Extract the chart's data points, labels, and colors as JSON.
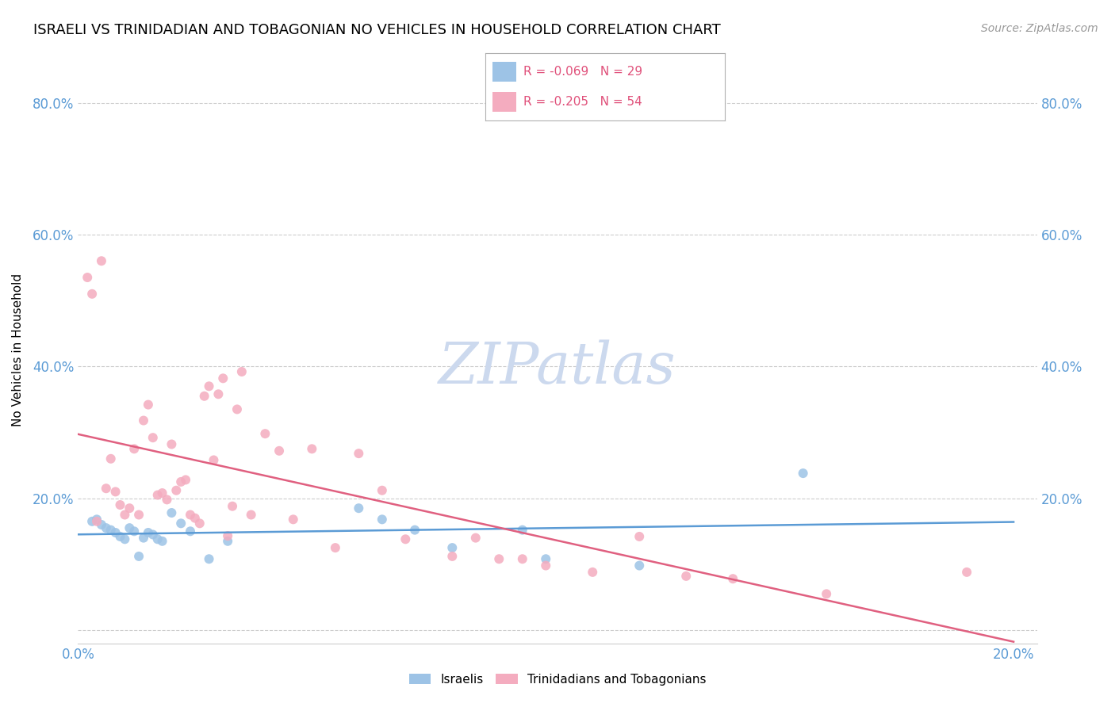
{
  "title": "ISRAELI VS TRINIDADIAN AND TOBAGONIAN NO VEHICLES IN HOUSEHOLD CORRELATION CHART",
  "source": "Source: ZipAtlas.com",
  "ylabel": "No Vehicles in Household",
  "watermark": "ZIPatlas",
  "xlim": [
    0.0,
    0.205
  ],
  "ylim": [
    -0.02,
    0.87
  ],
  "bg_color": "#ffffff",
  "grid_color": "#cccccc",
  "tick_color": "#5b9bd5",
  "title_fontsize": 13,
  "label_fontsize": 11,
  "tick_fontsize": 12,
  "source_fontsize": 10,
  "watermark_color": "#ccd9ee",
  "scatter_size": 75,
  "israeli_color": "#9dc3e6",
  "trini_color": "#f4acbf",
  "israeli_line_color": "#5b9bd5",
  "trini_line_color": "#e06080",
  "legend_text_color": "#e0507a",
  "israeli_x": [
    0.003,
    0.004,
    0.005,
    0.006,
    0.007,
    0.008,
    0.009,
    0.01,
    0.011,
    0.012,
    0.013,
    0.014,
    0.015,
    0.016,
    0.017,
    0.018,
    0.02,
    0.022,
    0.024,
    0.028,
    0.032,
    0.06,
    0.065,
    0.072,
    0.08,
    0.095,
    0.1,
    0.12,
    0.155
  ],
  "israeli_y": [
    0.165,
    0.168,
    0.16,
    0.155,
    0.152,
    0.148,
    0.142,
    0.138,
    0.155,
    0.15,
    0.112,
    0.14,
    0.148,
    0.145,
    0.138,
    0.135,
    0.178,
    0.162,
    0.15,
    0.108,
    0.135,
    0.185,
    0.168,
    0.152,
    0.125,
    0.152,
    0.108,
    0.098,
    0.238
  ],
  "trini_x": [
    0.002,
    0.003,
    0.004,
    0.005,
    0.006,
    0.007,
    0.008,
    0.009,
    0.01,
    0.011,
    0.012,
    0.013,
    0.014,
    0.015,
    0.016,
    0.017,
    0.018,
    0.019,
    0.02,
    0.021,
    0.022,
    0.023,
    0.024,
    0.025,
    0.026,
    0.027,
    0.028,
    0.029,
    0.03,
    0.031,
    0.032,
    0.033,
    0.034,
    0.035,
    0.037,
    0.04,
    0.043,
    0.046,
    0.05,
    0.055,
    0.06,
    0.065,
    0.07,
    0.08,
    0.085,
    0.09,
    0.095,
    0.1,
    0.11,
    0.12,
    0.13,
    0.14,
    0.16,
    0.19
  ],
  "trini_y": [
    0.535,
    0.51,
    0.165,
    0.56,
    0.215,
    0.26,
    0.21,
    0.19,
    0.175,
    0.185,
    0.275,
    0.175,
    0.318,
    0.342,
    0.292,
    0.205,
    0.208,
    0.198,
    0.282,
    0.212,
    0.225,
    0.228,
    0.175,
    0.17,
    0.162,
    0.355,
    0.37,
    0.258,
    0.358,
    0.382,
    0.143,
    0.188,
    0.335,
    0.392,
    0.175,
    0.298,
    0.272,
    0.168,
    0.275,
    0.125,
    0.268,
    0.212,
    0.138,
    0.112,
    0.14,
    0.108,
    0.108,
    0.098,
    0.088,
    0.142,
    0.082,
    0.078,
    0.055,
    0.088
  ]
}
